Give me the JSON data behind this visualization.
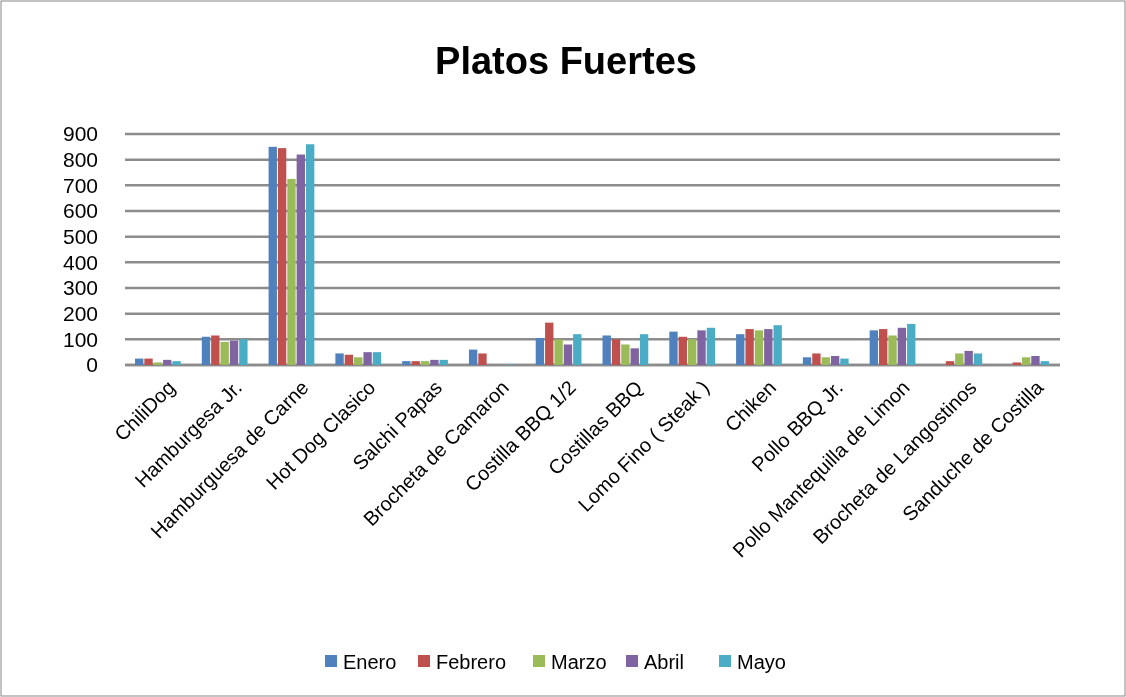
{
  "chart_data": {
    "type": "bar",
    "title": "Platos Fuertes",
    "categories": [
      "ChiliDog",
      "Hamburgesa Jr.",
      "Hamburguesa de Carne",
      "Hot Dog Clasico",
      "Salchi Papas",
      "Brocheta de Camaron",
      "Costilla BBQ 1/2",
      "Costillas BBQ",
      "Lomo Fino ( Steak )",
      "Chiken",
      "Pollo BBQ Jr.",
      "Pollo Mantequilla de Limon",
      "Brocheta de Langostinos",
      "Sanduche de Costilla"
    ],
    "series": [
      {
        "name": "Enero",
        "color": "#4f81bd",
        "values": [
          25,
          110,
          850,
          45,
          15,
          60,
          105,
          115,
          130,
          120,
          30,
          135,
          null,
          null
        ]
      },
      {
        "name": "Febrero",
        "color": "#c0504d",
        "values": [
          25,
          115,
          845,
          40,
          15,
          45,
          165,
          100,
          110,
          140,
          45,
          140,
          15,
          10
        ]
      },
      {
        "name": "Marzo",
        "color": "#9bbb59",
        "values": [
          10,
          90,
          725,
          30,
          15,
          null,
          100,
          80,
          100,
          135,
          30,
          115,
          45,
          30
        ]
      },
      {
        "name": "Abril",
        "color": "#8064a2",
        "values": [
          20,
          95,
          820,
          50,
          20,
          null,
          80,
          65,
          135,
          140,
          35,
          145,
          55,
          35
        ]
      },
      {
        "name": "Mayo",
        "color": "#4bacc6",
        "values": [
          15,
          100,
          860,
          50,
          20,
          2,
          120,
          120,
          145,
          155,
          25,
          160,
          45,
          15
        ]
      }
    ],
    "ylim": [
      0,
      900
    ],
    "yticks": [
      0,
      100,
      200,
      300,
      400,
      500,
      600,
      700,
      800,
      900
    ],
    "grid": "y",
    "legend": "bottom"
  }
}
